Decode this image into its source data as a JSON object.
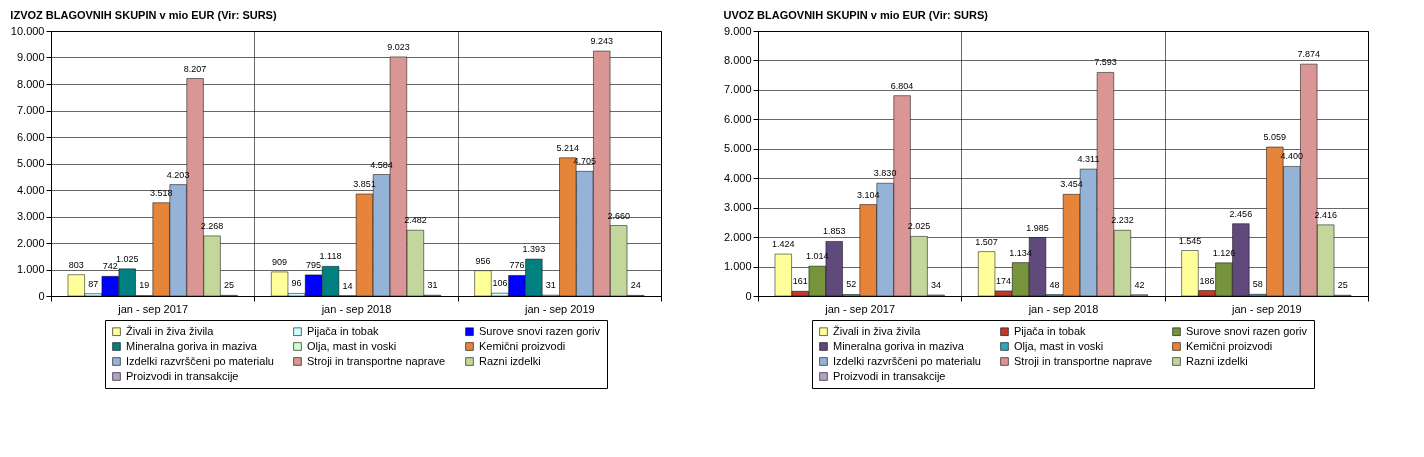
{
  "chart_data": [
    {
      "type": "bar",
      "title": "IZVOZ BLAGOVNIH SKUPIN v mio EUR (Vir: SURS)",
      "categories": [
        "jan - sep 2017",
        "jan - sep 2018",
        "jan - sep 2019"
      ],
      "ylim": [
        0,
        10000
      ],
      "yticks": [
        0,
        {
          "value": 1000,
          "label": "1.000"
        },
        {
          "value": 2000,
          "label": "2.000"
        },
        {
          "value": 3000,
          "label": "3.000"
        },
        {
          "value": 4000,
          "label": "4.000"
        },
        {
          "value": 5000,
          "label": "5.000"
        },
        {
          "value": 6000,
          "label": "6.000"
        },
        {
          "value": 7000,
          "label": "7.000"
        },
        {
          "value": 8000,
          "label": "8.000"
        },
        {
          "value": 9000,
          "label": "9.000"
        },
        {
          "value": 10000,
          "label": "10.000"
        }
      ],
      "grid": true,
      "legend": "bottom",
      "series": [
        {
          "name": "Živali in živa živila",
          "color": "#ffff99",
          "values": [
            803,
            909,
            956
          ],
          "value_labels": [
            "803",
            "909",
            "956"
          ]
        },
        {
          "name": "Pijača in tobak",
          "color": "#ccffff",
          "values": [
            87,
            96,
            106
          ],
          "value_labels": [
            "87",
            "96",
            "106"
          ]
        },
        {
          "name": "Surove snovi razen goriv",
          "color": "#0000ff",
          "values": [
            742,
            795,
            776
          ],
          "value_labels": [
            "742",
            "795",
            "776"
          ]
        },
        {
          "name": "Mineralna goriva in maziva",
          "color": "#008080",
          "values": [
            1025,
            1118,
            1393
          ],
          "value_labels": [
            "1.025",
            "1.118",
            "1.393"
          ]
        },
        {
          "name": "Olja, mast in voski",
          "color": "#ccffcc",
          "values": [
            19,
            14,
            31
          ],
          "value_labels": [
            "19",
            "14",
            "31"
          ]
        },
        {
          "name": "Kemični proizvodi",
          "color": "#e6843a",
          "values": [
            3518,
            3851,
            5214
          ],
          "value_labels": [
            "3.518",
            "3.851",
            "5.214"
          ]
        },
        {
          "name": "Izdelki razvrščeni po materialu",
          "color": "#95b3d7",
          "values": [
            4203,
            4584,
            4705
          ],
          "value_labels": [
            "4.203",
            "4.584",
            "4.705"
          ]
        },
        {
          "name": "Stroji in transportne naprave",
          "color": "#d99694",
          "values": [
            8207,
            9023,
            9243
          ],
          "value_labels": [
            "8.207",
            "9.023",
            "9.243"
          ]
        },
        {
          "name": "Razni izdelki",
          "color": "#c3d69b",
          "values": [
            2268,
            2482,
            2660
          ],
          "value_labels": [
            "2.268",
            "2.482",
            "2.660"
          ]
        },
        {
          "name": "Proizvodi in transakcije",
          "color": "#b3a2c7",
          "values": [
            25,
            31,
            24
          ],
          "value_labels": [
            "25",
            "31",
            "24"
          ]
        }
      ]
    },
    {
      "type": "bar",
      "title": "UVOZ BLAGOVNIH SKUPIN v mio EUR (Vir: SURS)",
      "categories": [
        "jan - sep 2017",
        "jan - sep 2018",
        "jan - sep 2019"
      ],
      "ylim": [
        0,
        9000
      ],
      "yticks": [
        0,
        {
          "value": 1000,
          "label": "1.000"
        },
        {
          "value": 2000,
          "label": "2.000"
        },
        {
          "value": 3000,
          "label": "3.000"
        },
        {
          "value": 4000,
          "label": "4.000"
        },
        {
          "value": 5000,
          "label": "5.000"
        },
        {
          "value": 6000,
          "label": "6.000"
        },
        {
          "value": 7000,
          "label": "7.000"
        },
        {
          "value": 8000,
          "label": "8.000"
        },
        {
          "value": 9000,
          "label": "9.000"
        }
      ],
      "grid": true,
      "legend": "bottom",
      "series": [
        {
          "name": "Živali in živa živila",
          "color": "#ffff99",
          "values": [
            1424,
            1507,
            1545
          ],
          "value_labels": [
            "1.424",
            "1.507",
            "1.545"
          ]
        },
        {
          "name": "Pijača in tobak",
          "color": "#c0392b",
          "values": [
            161,
            174,
            186
          ],
          "value_labels": [
            "161",
            "174",
            "186"
          ]
        },
        {
          "name": "Surove snovi razen goriv",
          "color": "#77933c",
          "values": [
            1014,
            1134,
            1126
          ],
          "value_labels": [
            "1.014",
            "1.134",
            "1.126"
          ]
        },
        {
          "name": "Mineralna goriva in maziva",
          "color": "#604a7b",
          "values": [
            1853,
            1985,
            2456
          ],
          "value_labels": [
            "1.853",
            "1.985",
            "2.456"
          ]
        },
        {
          "name": "Olja, mast in voski",
          "color": "#31a6b8",
          "values": [
            52,
            48,
            58
          ],
          "value_labels": [
            "52",
            "48",
            "58"
          ]
        },
        {
          "name": "Kemični proizvodi",
          "color": "#e6843a",
          "values": [
            3104,
            3454,
            5059
          ],
          "value_labels": [
            "3.104",
            "3.454",
            "5.059"
          ]
        },
        {
          "name": "Izdelki razvrščeni po materialu",
          "color": "#95b3d7",
          "values": [
            3830,
            4311,
            4400
          ],
          "value_labels": [
            "3.830",
            "4.311",
            "4.400"
          ]
        },
        {
          "name": "Stroji in transportne naprave",
          "color": "#d99694",
          "values": [
            6804,
            7593,
            7874
          ],
          "value_labels": [
            "6.804",
            "7.593",
            "7.874"
          ]
        },
        {
          "name": "Razni izdelki",
          "color": "#c3d69b",
          "values": [
            2025,
            2232,
            2416
          ],
          "value_labels": [
            "2.025",
            "2.232",
            "2.416"
          ]
        },
        {
          "name": "Proizvodi in transakcije",
          "color": "#b3a2c7",
          "values": [
            34,
            42,
            25
          ],
          "value_labels": [
            "34",
            "42",
            "25"
          ]
        }
      ]
    }
  ]
}
